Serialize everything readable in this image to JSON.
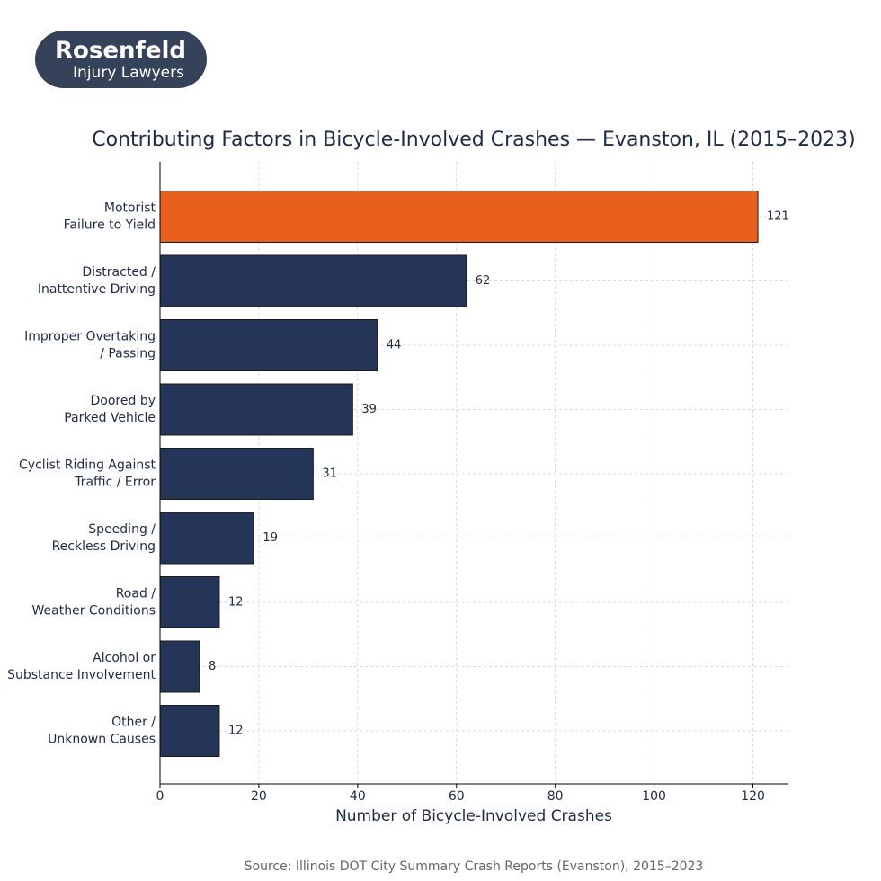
{
  "logo": {
    "name": "Rosenfeld",
    "tagline": "Injury Lawyers"
  },
  "chart_data": {
    "type": "barh",
    "title": "Contributing Factors in Bicycle-Involved Crashes — Evanston, IL (2015–2023)",
    "x_label": "Number of Bicycle-Involved Crashes",
    "categories": [
      [
        "Motorist",
        "Failure to Yield"
      ],
      [
        "Distracted /",
        "Inattentive Driving"
      ],
      [
        "Improper Overtaking",
        "/ Passing"
      ],
      [
        "Doored by",
        "Parked Vehicle"
      ],
      [
        "Cyclist Riding Against",
        "Traffic / Error"
      ],
      [
        "Speeding /",
        "Reckless Driving"
      ],
      [
        "Road /",
        "Weather Conditions"
      ],
      [
        "Alcohol or",
        "Substance Involvement"
      ],
      [
        "Other /",
        "Unknown Causes"
      ]
    ],
    "values": [
      121,
      62,
      44,
      39,
      31,
      19,
      12,
      8,
      12
    ],
    "colors": [
      "#e8601c",
      "#243558",
      "#243558",
      "#243558",
      "#243558",
      "#243558",
      "#243558",
      "#243558",
      "#243558"
    ],
    "xlim": [
      0,
      127
    ],
    "xticks": [
      0,
      20,
      40,
      60,
      80,
      100,
      120
    ],
    "grid": true,
    "source": "Source: Illinois DOT City Summary Crash Reports (Evanston), 2015–2023"
  }
}
